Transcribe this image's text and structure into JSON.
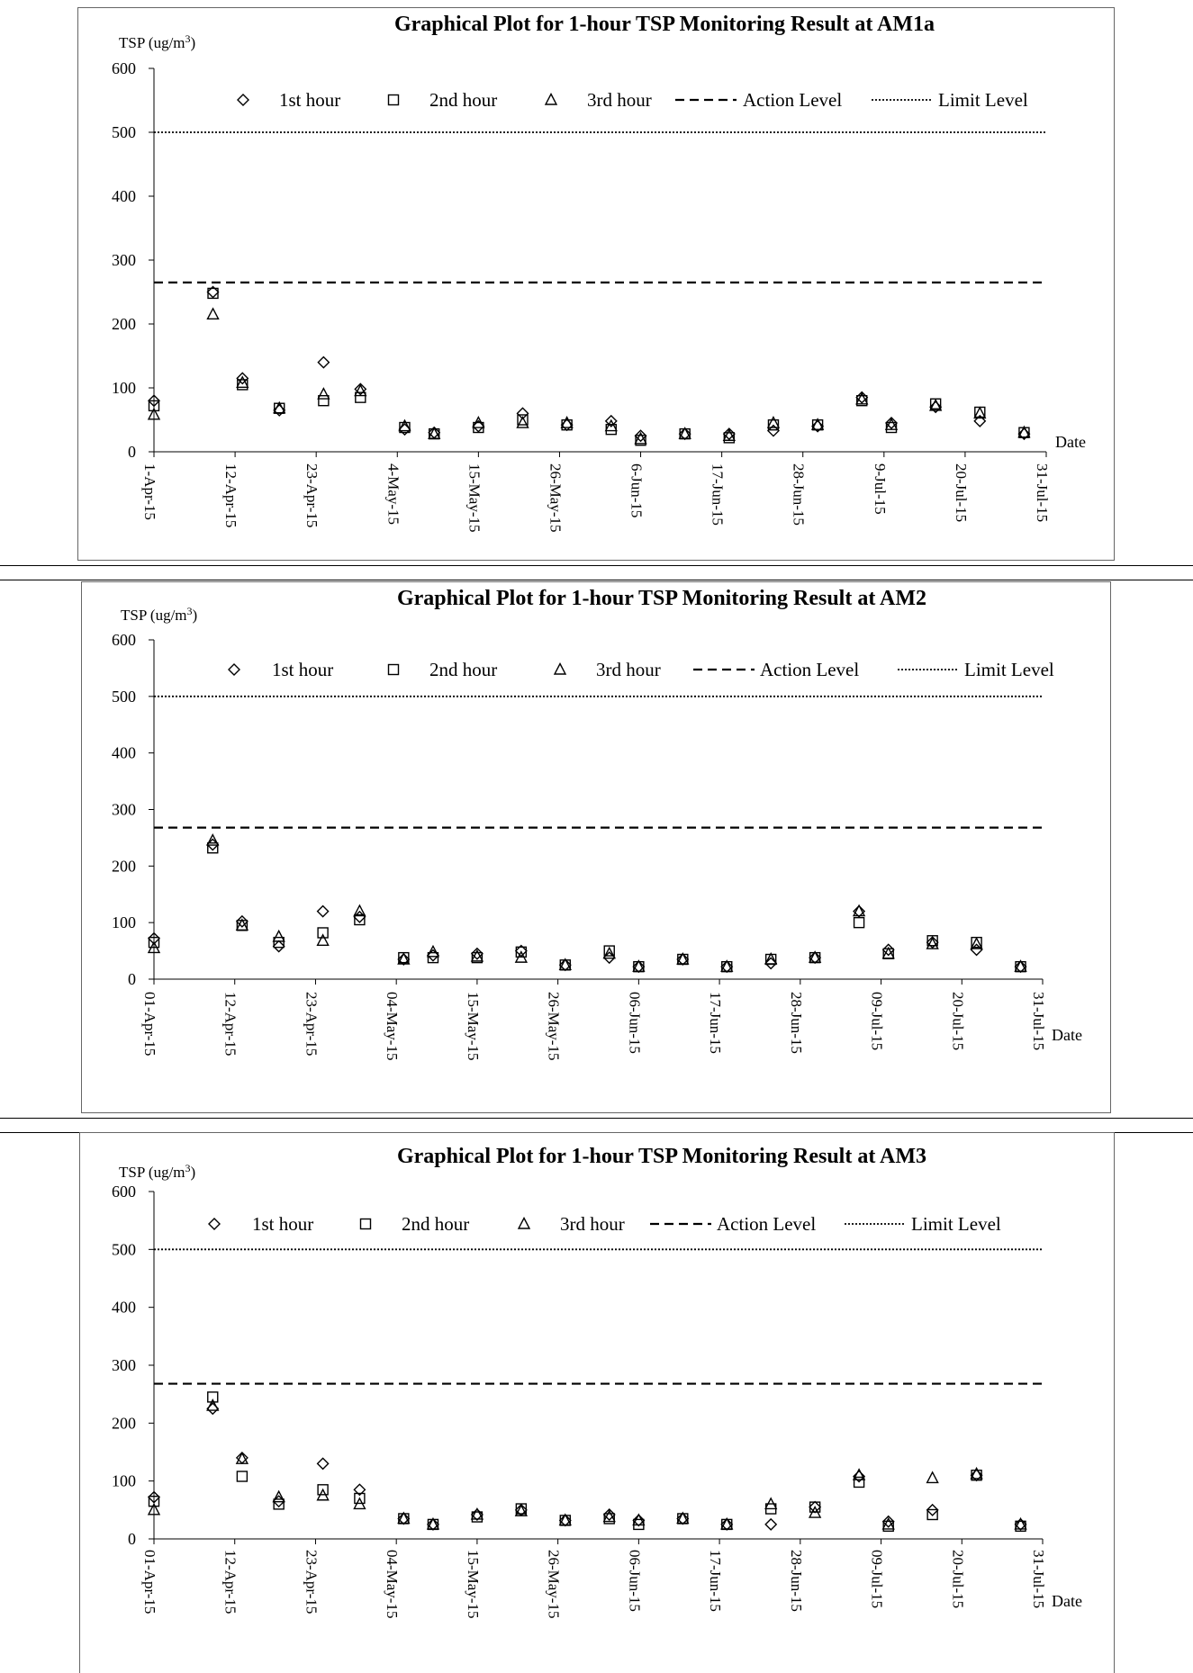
{
  "legend_labels": {
    "h1": "1st hour",
    "h2": "2nd hour",
    "h3": "3rd hour",
    "action": "Action Level",
    "limit": "Limit Level"
  },
  "chart_data": [
    {
      "type": "scatter",
      "title": "Graphical Plot for 1-hour TSP Monitoring Result at AM1a",
      "ylabel": "TSP (ug/m3)",
      "ylabel_base": "TSP (ug/m",
      "ylabel_sup": "3",
      "ylabel_tail": ")",
      "xlabel": "Date",
      "ylim": [
        0,
        600
      ],
      "yticks": [
        "0",
        "100",
        "200",
        "300",
        "400",
        "500",
        "600"
      ],
      "xticks": [
        "1-Apr-15",
        "12-Apr-15",
        "23-Apr-15",
        "4-May-15",
        "15-May-15",
        "26-May-15",
        "6-Jun-15",
        "17-Jun-15",
        "28-Jun-15",
        "9-Jul-15",
        "20-Jul-15",
        "31-Jul-15"
      ],
      "action_level": 265,
      "limit_level": 500,
      "grid": false,
      "legend_position": "top",
      "dates": [
        "2015-04-01",
        "2015-04-09",
        "2015-04-13",
        "2015-04-18",
        "2015-04-24",
        "2015-04-29",
        "2015-05-05",
        "2015-05-09",
        "2015-05-15",
        "2015-05-21",
        "2015-05-27",
        "2015-06-02",
        "2015-06-06",
        "2015-06-12",
        "2015-06-18",
        "2015-06-24",
        "2015-06-30",
        "2015-07-06",
        "2015-07-10",
        "2015-07-16",
        "2015-07-22",
        "2015-07-28"
      ],
      "series": [
        {
          "name": "1st hour",
          "values": [
            80,
            250,
            115,
            65,
            140,
            98,
            35,
            30,
            40,
            60,
            42,
            48,
            25,
            28,
            28,
            33,
            40,
            85,
            45,
            70,
            48,
            28
          ]
        },
        {
          "name": "2nd hour",
          "values": [
            72,
            248,
            105,
            68,
            80,
            85,
            38,
            28,
            38,
            50,
            42,
            35,
            18,
            28,
            22,
            42,
            42,
            80,
            38,
            75,
            62,
            30
          ]
        },
        {
          "name": "3rd hour",
          "values": [
            58,
            215,
            108,
            68,
            90,
            95,
            40,
            28,
            45,
            45,
            45,
            40,
            20,
            28,
            25,
            45,
            42,
            82,
            42,
            72,
            60,
            30
          ]
        }
      ]
    },
    {
      "type": "scatter",
      "title": "Graphical Plot for 1-hour TSP Monitoring Result at AM2",
      "ylabel": "TSP (ug/m3)",
      "ylabel_base": "TSP (ug/m",
      "ylabel_sup": "3",
      "ylabel_tail": ")",
      "xlabel": "Date",
      "ylim": [
        0,
        600
      ],
      "yticks": [
        "0",
        "100",
        "200",
        "300",
        "400",
        "500",
        "600"
      ],
      "xticks": [
        "01-Apr-15",
        "12-Apr-15",
        "23-Apr-15",
        "04-May-15",
        "15-May-15",
        "26-May-15",
        "06-Jun-15",
        "17-Jun-15",
        "28-Jun-15",
        "09-Jul-15",
        "20-Jul-15",
        "31-Jul-15"
      ],
      "action_level": 268,
      "limit_level": 500,
      "grid": false,
      "legend_position": "top",
      "dates": [
        "2015-04-01",
        "2015-04-09",
        "2015-04-13",
        "2015-04-18",
        "2015-04-24",
        "2015-04-29",
        "2015-05-05",
        "2015-05-09",
        "2015-05-15",
        "2015-05-21",
        "2015-05-27",
        "2015-06-02",
        "2015-06-06",
        "2015-06-12",
        "2015-06-18",
        "2015-06-24",
        "2015-06-30",
        "2015-07-06",
        "2015-07-10",
        "2015-07-16",
        "2015-07-22",
        "2015-07-28"
      ],
      "series": [
        {
          "name": "1st hour",
          "values": [
            72,
            238,
            102,
            58,
            120,
            110,
            35,
            42,
            45,
            50,
            25,
            38,
            22,
            35,
            22,
            28,
            38,
            120,
            52,
            65,
            52,
            22
          ]
        },
        {
          "name": "2nd hour",
          "values": [
            65,
            232,
            95,
            65,
            82,
            105,
            38,
            38,
            38,
            48,
            25,
            50,
            22,
            35,
            22,
            35,
            38,
            100,
            45,
            68,
            65,
            22
          ]
        },
        {
          "name": "3rd hour",
          "values": [
            55,
            245,
            95,
            75,
            68,
            120,
            35,
            48,
            40,
            38,
            25,
            45,
            22,
            35,
            22,
            35,
            38,
            120,
            45,
            62,
            62,
            22
          ]
        }
      ]
    },
    {
      "type": "scatter",
      "title": "Graphical Plot for 1-hour TSP Monitoring Result at AM3",
      "ylabel": "TSP (ug/m3)",
      "ylabel_base": "TSP (ug/m",
      "ylabel_sup": "3",
      "ylabel_tail": ")",
      "xlabel": "Date",
      "ylim": [
        0,
        600
      ],
      "yticks": [
        "0",
        "100",
        "200",
        "300",
        "400",
        "500",
        "600"
      ],
      "xticks": [
        "01-Apr-15",
        "12-Apr-15",
        "23-Apr-15",
        "04-May-15",
        "15-May-15",
        "26-May-15",
        "06-Jun-15",
        "17-Jun-15",
        "28-Jun-15",
        "09-Jul-15",
        "20-Jul-15",
        "31-Jul-15"
      ],
      "action_level": 268,
      "limit_level": 500,
      "grid": false,
      "legend_position": "top",
      "dates": [
        "2015-04-01",
        "2015-04-09",
        "2015-04-13",
        "2015-04-18",
        "2015-04-24",
        "2015-04-29",
        "2015-05-05",
        "2015-05-09",
        "2015-05-15",
        "2015-05-21",
        "2015-05-27",
        "2015-06-02",
        "2015-06-06",
        "2015-06-12",
        "2015-06-18",
        "2015-06-24",
        "2015-06-30",
        "2015-07-06",
        "2015-07-10",
        "2015-07-16",
        "2015-07-22",
        "2015-07-28"
      ],
      "series": [
        {
          "name": "1st hour",
          "values": [
            72,
            225,
            140,
            65,
            130,
            85,
            35,
            25,
            42,
            50,
            32,
            42,
            32,
            35,
            25,
            25,
            55,
            108,
            30,
            50,
            110,
            25
          ]
        },
        {
          "name": "2nd hour",
          "values": [
            65,
            245,
            108,
            60,
            85,
            70,
            35,
            25,
            38,
            52,
            32,
            35,
            25,
            35,
            25,
            52,
            55,
            98,
            22,
            42,
            110,
            22
          ]
        },
        {
          "name": "3rd hour",
          "values": [
            50,
            230,
            138,
            72,
            75,
            60,
            35,
            25,
            42,
            48,
            32,
            38,
            32,
            35,
            25,
            60,
            45,
            110,
            25,
            105,
            112,
            25
          ]
        }
      ]
    }
  ]
}
